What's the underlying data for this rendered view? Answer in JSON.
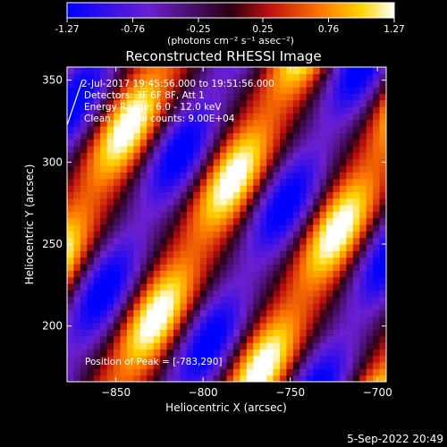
{
  "colorbar": {
    "ticks": [
      "-1.27",
      "-0.76",
      "-0.25",
      "0.25",
      "0.76",
      "1.27"
    ],
    "tick_values": [
      -1.27,
      -0.76,
      -0.25,
      0.25,
      0.76,
      1.27
    ],
    "range": [
      -1.27,
      1.27
    ],
    "units_label": "(photons cm⁻² s⁻¹ asec⁻²)",
    "colormap": "blue-purple-red-yellow-white"
  },
  "chart_data": {
    "type": "heatmap",
    "title": "Reconstructed RHESSI Image",
    "xlabel": "Heliocentric X (arcsec)",
    "ylabel": "Heliocentric Y (arcsec)",
    "xlim": [
      -878,
      -695
    ],
    "ylim": [
      166,
      358
    ],
    "x_ticks": [
      -850,
      -800,
      -750,
      -700
    ],
    "x_tick_labels": [
      "−850",
      "−800",
      "−750",
      "−700"
    ],
    "y_ticks": [
      200,
      250,
      300,
      350
    ],
    "y_tick_labels": [
      "200",
      "250",
      "300",
      "350"
    ],
    "value_range": [
      -1.27,
      1.27
    ],
    "pattern": "diagonal fringe stripes, bright lobes along ridges",
    "peak": {
      "x": -783,
      "y": 290
    },
    "grid": false
  },
  "annotations": {
    "lines": [
      "2-Jul-2017 19:45:56.000 to 19:51:56.000",
      "Detectors: 3F 6F 8F, Att 1",
      "Energy Range: 6.0 - 12.0 keV",
      "Clean     Total counts: 9.00E+04"
    ],
    "peak_text": "Position of Peak = [-783,290]"
  },
  "footer": {
    "timestamp": "5-Sep-2022 20:49"
  }
}
